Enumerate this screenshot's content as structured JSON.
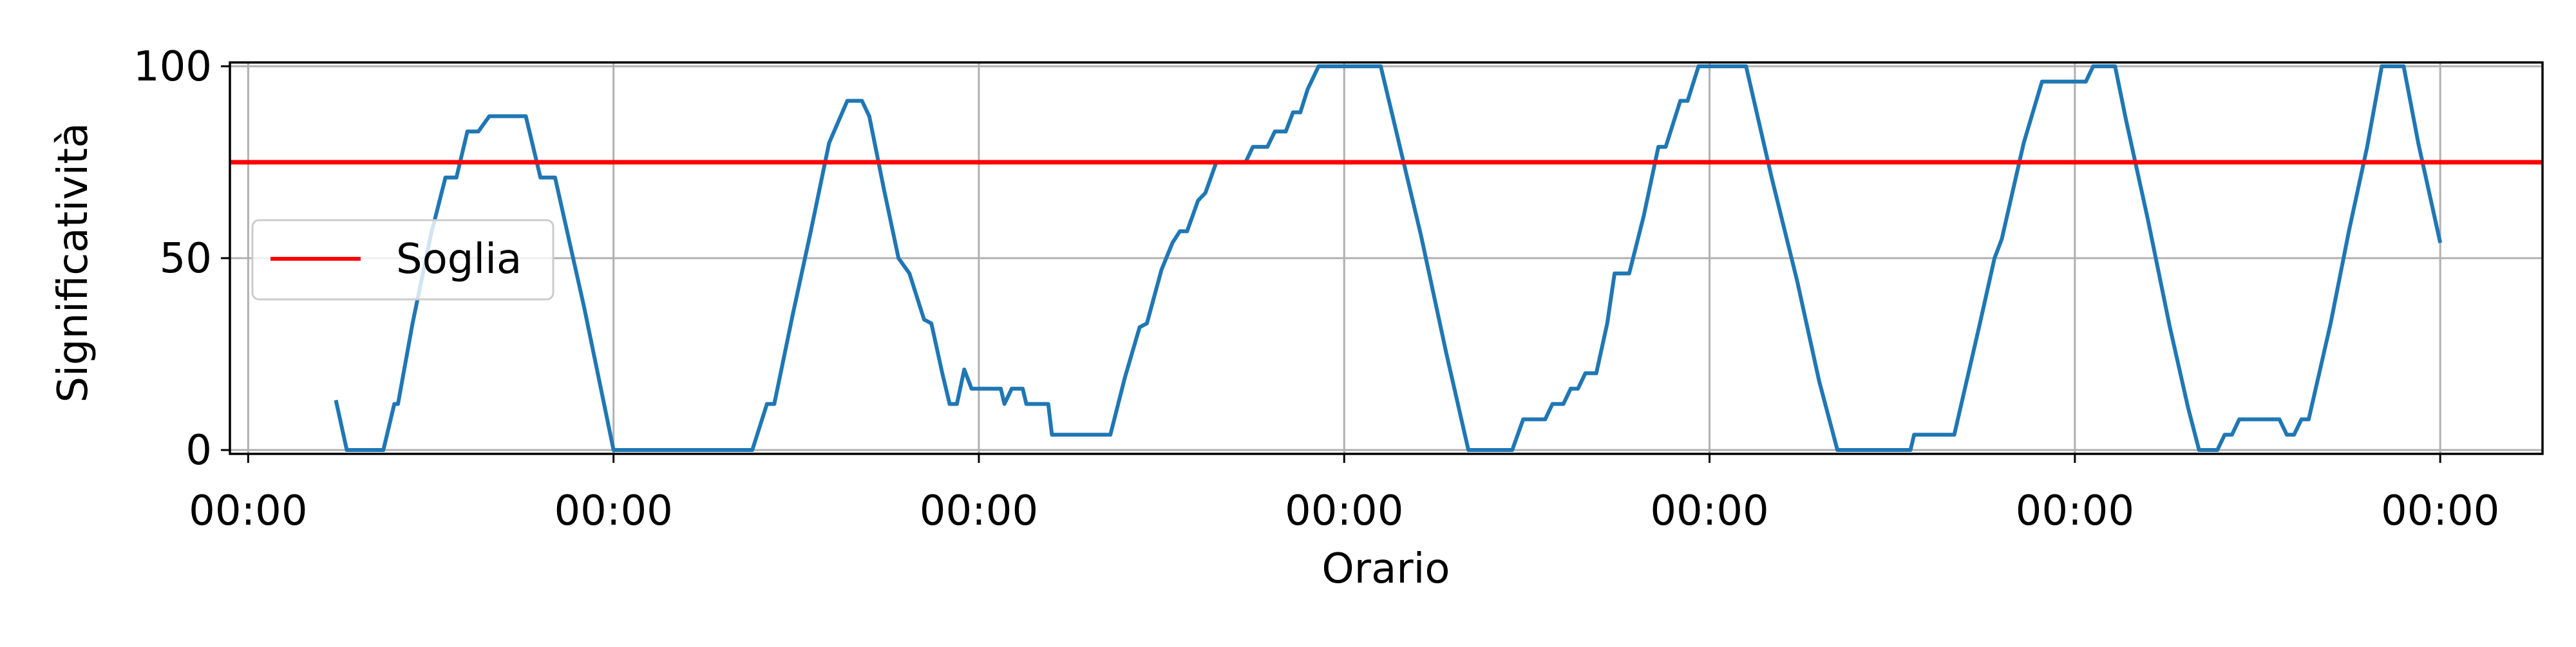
{
  "chart_data": {
    "type": "line",
    "xlabel": "Orario",
    "ylabel": "Significatività",
    "xlim": [
      -0.05,
      6.28
    ],
    "ylim": [
      -1,
      101
    ],
    "x_ticks": [
      0,
      1,
      2,
      3,
      4,
      5,
      6
    ],
    "x_tick_labels": [
      "00:00",
      "00:00",
      "00:00",
      "00:00",
      "00:00",
      "00:00",
      "00:00"
    ],
    "y_ticks": [
      0,
      50,
      100
    ],
    "y_tick_labels": [
      "0",
      "50",
      "100"
    ],
    "grid": true,
    "legend": {
      "placement": "center-left",
      "entries": [
        "Soglia"
      ]
    },
    "series": [
      {
        "color": "#1f77b4",
        "points": [
          [
            0.24,
            13
          ],
          [
            0.27,
            0
          ],
          [
            0.37,
            0
          ],
          [
            0.4,
            12
          ],
          [
            0.41,
            12
          ],
          [
            0.45,
            33
          ],
          [
            0.5,
            56
          ],
          [
            0.54,
            71
          ],
          [
            0.57,
            71
          ],
          [
            0.6,
            83
          ],
          [
            0.63,
            83
          ],
          [
            0.66,
            87
          ],
          [
            0.76,
            87
          ],
          [
            0.8,
            71
          ],
          [
            0.84,
            71
          ],
          [
            0.92,
            37
          ],
          [
            1.0,
            0
          ],
          [
            1.38,
            0
          ],
          [
            1.42,
            12
          ],
          [
            1.44,
            12
          ],
          [
            1.49,
            35
          ],
          [
            1.54,
            57
          ],
          [
            1.59,
            80
          ],
          [
            1.64,
            91
          ],
          [
            1.68,
            91
          ],
          [
            1.7,
            87
          ],
          [
            1.74,
            68
          ],
          [
            1.78,
            50
          ],
          [
            1.81,
            46
          ],
          [
            1.85,
            34
          ],
          [
            1.87,
            33
          ],
          [
            1.9,
            20
          ],
          [
            1.92,
            12
          ],
          [
            1.94,
            12
          ],
          [
            1.96,
            21
          ],
          [
            1.98,
            16
          ],
          [
            2.06,
            16
          ],
          [
            2.07,
            12
          ],
          [
            2.09,
            16
          ],
          [
            2.12,
            16
          ],
          [
            2.13,
            12
          ],
          [
            2.19,
            12
          ],
          [
            2.2,
            4
          ],
          [
            2.36,
            4
          ],
          [
            2.4,
            19
          ],
          [
            2.44,
            32
          ],
          [
            2.46,
            33
          ],
          [
            2.5,
            47
          ],
          [
            2.53,
            54
          ],
          [
            2.55,
            57
          ],
          [
            2.57,
            57
          ],
          [
            2.6,
            65
          ],
          [
            2.62,
            67
          ],
          [
            2.65,
            75
          ],
          [
            2.73,
            75
          ],
          [
            2.75,
            79
          ],
          [
            2.79,
            79
          ],
          [
            2.81,
            83
          ],
          [
            2.84,
            83
          ],
          [
            2.86,
            88
          ],
          [
            2.88,
            88
          ],
          [
            2.9,
            94
          ],
          [
            2.93,
            100
          ],
          [
            3.1,
            100
          ],
          [
            3.14,
            84
          ],
          [
            3.21,
            56
          ],
          [
            3.28,
            25
          ],
          [
            3.34,
            0
          ],
          [
            3.46,
            0
          ],
          [
            3.49,
            8
          ],
          [
            3.55,
            8
          ],
          [
            3.57,
            12
          ],
          [
            3.6,
            12
          ],
          [
            3.62,
            16
          ],
          [
            3.64,
            16
          ],
          [
            3.66,
            20
          ],
          [
            3.69,
            20
          ],
          [
            3.72,
            33
          ],
          [
            3.74,
            46
          ],
          [
            3.78,
            46
          ],
          [
            3.82,
            61
          ],
          [
            3.86,
            79
          ],
          [
            3.88,
            79
          ],
          [
            3.92,
            91
          ],
          [
            3.94,
            91
          ],
          [
            3.97,
            100
          ],
          [
            4.1,
            100
          ],
          [
            4.17,
            71
          ],
          [
            4.24,
            44
          ],
          [
            4.3,
            18
          ],
          [
            4.35,
            0
          ],
          [
            4.55,
            0
          ],
          [
            4.56,
            4
          ],
          [
            4.67,
            4
          ],
          [
            4.74,
            33
          ],
          [
            4.78,
            50
          ],
          [
            4.8,
            55
          ],
          [
            4.86,
            80
          ],
          [
            4.91,
            96
          ],
          [
            5.03,
            96
          ],
          [
            5.05,
            100
          ],
          [
            5.11,
            100
          ],
          [
            5.14,
            86
          ],
          [
            5.2,
            60
          ],
          [
            5.26,
            32
          ],
          [
            5.31,
            11
          ],
          [
            5.34,
            0
          ],
          [
            5.39,
            0
          ],
          [
            5.41,
            4
          ],
          [
            5.43,
            4
          ],
          [
            5.45,
            8
          ],
          [
            5.56,
            8
          ],
          [
            5.58,
            4
          ],
          [
            5.6,
            4
          ],
          [
            5.62,
            8
          ],
          [
            5.64,
            8
          ],
          [
            5.7,
            33
          ],
          [
            5.75,
            57
          ],
          [
            5.8,
            79
          ],
          [
            5.84,
            100
          ],
          [
            5.9,
            100
          ],
          [
            5.94,
            80
          ],
          [
            6.0,
            54
          ]
        ]
      },
      {
        "name": "Soglia",
        "color": "#ff0000",
        "type": "hline",
        "y": 75
      }
    ]
  }
}
